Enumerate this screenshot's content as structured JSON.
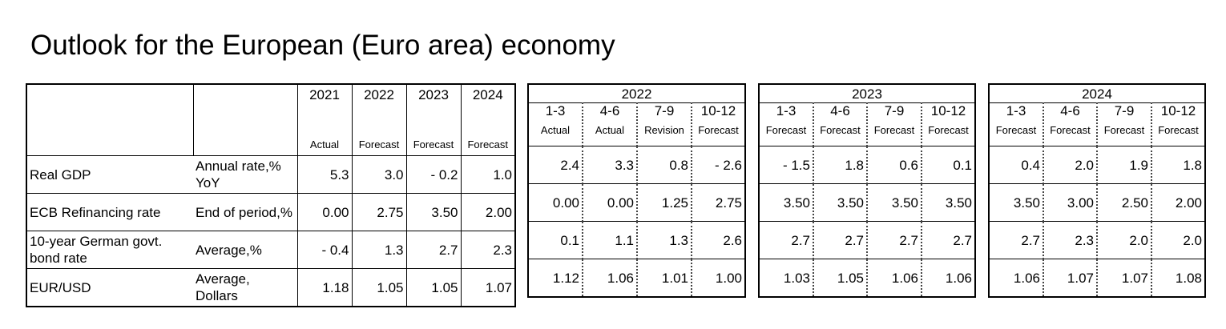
{
  "title": "Outlook for the European (Euro area) economy",
  "annual": {
    "years": [
      "2021",
      "2022",
      "2023",
      "2024"
    ],
    "status": [
      "Actual",
      "Forecast",
      "Forecast",
      "Forecast"
    ]
  },
  "quarterly_groups": [
    {
      "year": "2022",
      "quarters": [
        "1-3",
        "4-6",
        "7-9",
        "10-12"
      ],
      "status": [
        "Actual",
        "Actual",
        "Revision",
        "Forecast"
      ]
    },
    {
      "year": "2023",
      "quarters": [
        "1-3",
        "4-6",
        "7-9",
        "10-12"
      ],
      "status": [
        "Forecast",
        "Forecast",
        "Forecast",
        "Forecast"
      ]
    },
    {
      "year": "2024",
      "quarters": [
        "1-3",
        "4-6",
        "7-9",
        "10-12"
      ],
      "status": [
        "Forecast",
        "Forecast",
        "Forecast",
        "Forecast"
      ]
    }
  ],
  "rows": [
    {
      "label": "Real GDP",
      "unit": "Annual rate,% YoY",
      "annual": [
        "5.3",
        "3.0",
        "- 0.2",
        "1.0"
      ],
      "q2022": [
        "2.4",
        "3.3",
        "0.8",
        "- 2.6"
      ],
      "q2023": [
        "- 1.5",
        "1.8",
        "0.6",
        "0.1"
      ],
      "q2024": [
        "0.4",
        "2.0",
        "1.9",
        "1.8"
      ]
    },
    {
      "label": "ECB Refinancing rate",
      "unit": "End of period,%",
      "annual": [
        "0.00",
        "2.75",
        "3.50",
        "2.00"
      ],
      "q2022": [
        "0.00",
        "0.00",
        "1.25",
        "2.75"
      ],
      "q2023": [
        "3.50",
        "3.50",
        "3.50",
        "3.50"
      ],
      "q2024": [
        "3.50",
        "3.00",
        "2.50",
        "2.00"
      ]
    },
    {
      "label": "10-year German govt. bond rate",
      "unit": "Average,%",
      "annual": [
        "- 0.4",
        "1.3",
        "2.7",
        "2.3"
      ],
      "q2022": [
        "0.1",
        "1.1",
        "1.3",
        "2.6"
      ],
      "q2023": [
        "2.7",
        "2.7",
        "2.7",
        "2.7"
      ],
      "q2024": [
        "2.7",
        "2.3",
        "2.0",
        "2.0"
      ]
    },
    {
      "label": "EUR/USD",
      "unit": "Average, Dollars",
      "annual": [
        "1.18",
        "1.05",
        "1.05",
        "1.07"
      ],
      "q2022": [
        "1.12",
        "1.06",
        "1.01",
        "1.00"
      ],
      "q2023": [
        "1.03",
        "1.05",
        "1.06",
        "1.06"
      ],
      "q2024": [
        "1.06",
        "1.07",
        "1.07",
        "1.08"
      ]
    }
  ]
}
